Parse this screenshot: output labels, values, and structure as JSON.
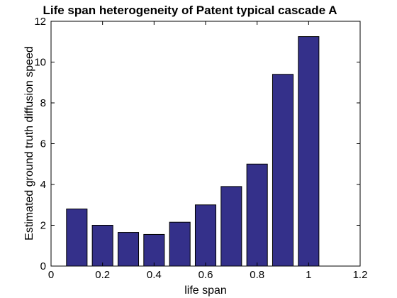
{
  "chart_data": {
    "type": "bar",
    "title": "Life span heterogeneity of Patent typical cascade A",
    "xlabel": "life span",
    "ylabel": "Estimated ground truth diffusion speed",
    "x": [
      0.1,
      0.2,
      0.3,
      0.4,
      0.5,
      0.6,
      0.7,
      0.8,
      0.9,
      1.0
    ],
    "values": [
      2.8,
      2.0,
      1.65,
      1.55,
      2.15,
      3.0,
      3.9,
      5.0,
      9.4,
      11.25
    ],
    "xlim": [
      0,
      1.2
    ],
    "ylim": [
      0,
      12
    ],
    "xticks": [
      "0",
      "0.2",
      "0.4",
      "0.6",
      "0.8",
      "1",
      "1.2"
    ],
    "yticks": [
      "0",
      "2",
      "4",
      "6",
      "8",
      "10",
      "12"
    ],
    "grid": false,
    "bar_color": "#34308a",
    "bar_edge_color": "#000000"
  }
}
